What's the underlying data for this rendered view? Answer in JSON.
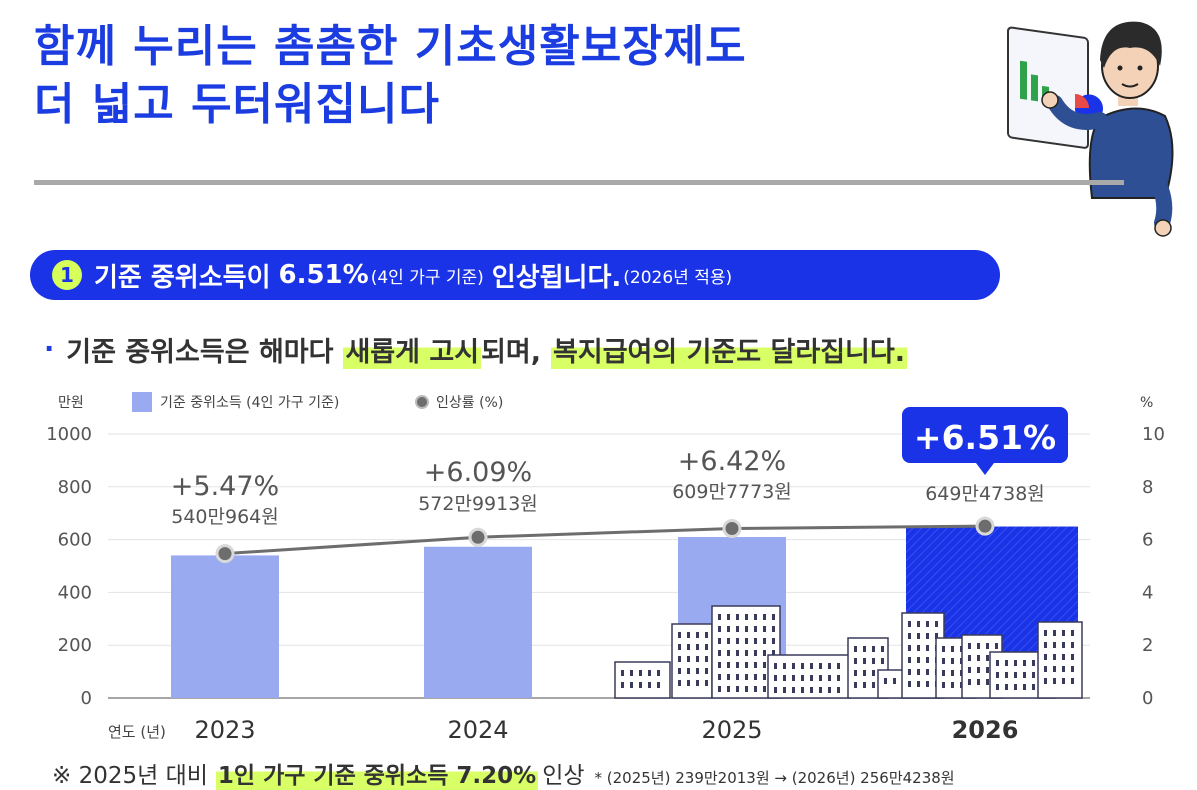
{
  "header": {
    "title_line1": "함께 누리는 촘촘한 기초생활보장제도",
    "title_line2": "더 넓고 두터워집니다"
  },
  "pill": {
    "number": "1",
    "text_a": "기준 중위소득이",
    "text_b": "6.51%",
    "text_c": "(4인 가구 기준)",
    "text_d": "인상됩니다.",
    "text_e": "(2026년 적용)"
  },
  "bullet": {
    "text_a": "기준 중위소득은 해마다",
    "highlight_1": "새롭게 고시",
    "text_b": "되며,",
    "highlight_2": "복지급여의 기준도 달라집니다."
  },
  "legend": {
    "left_unit": "만원",
    "bar_label": "기준 중위소득 (4인 가구 기준)",
    "line_label": "인상률 (%)",
    "right_unit": "%"
  },
  "axis": {
    "x_title": "연도 (년)"
  },
  "chart_data": {
    "type": "bar",
    "categories": [
      "2023",
      "2024",
      "2025",
      "2026"
    ],
    "series": [
      {
        "name": "기준 중위소득 (4인 가구 기준)",
        "values": [
          540.0964,
          572.9913,
          609.7773,
          649.4738
        ],
        "axis": "left"
      },
      {
        "name": "인상률 (%)",
        "values": [
          5.47,
          6.09,
          6.42,
          6.51
        ],
        "axis": "right"
      }
    ],
    "value_labels": [
      "540만964원",
      "572만9913원",
      "609만7773원",
      "649만4738원"
    ],
    "rate_labels": [
      "+5.47%",
      "+6.09%",
      "+6.42%",
      "+6.51%"
    ],
    "ylim_left": [
      0,
      1000
    ],
    "yticks_left": [
      "0",
      "200",
      "400",
      "600",
      "800",
      "1000"
    ],
    "ylim_right": [
      0,
      10
    ],
    "yticks_right": [
      "0",
      "2",
      "4",
      "6",
      "8",
      "10"
    ],
    "grid": true,
    "highlight_category": "2026",
    "colors": {
      "bar": "#9aaaf0",
      "bar_highlight": "#1a33e6",
      "line": "#6d6d6d",
      "accent": "#d9ff66"
    }
  },
  "footer": {
    "text_a": "※ 2025년 대비",
    "highlight": "1인 가구 기준 중위소득 7.20%",
    "text_b": "인상",
    "note": "* (2025년) 239만2013원 → (2026년) 256만4238원"
  }
}
